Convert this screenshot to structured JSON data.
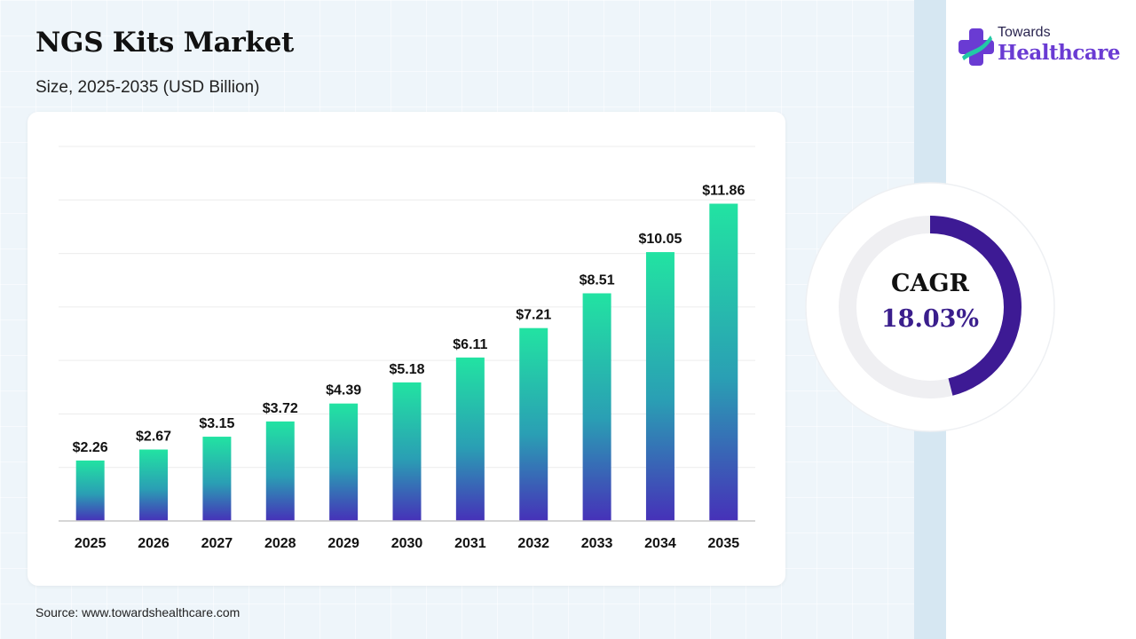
{
  "header": {
    "title": "NGS Kits Market",
    "subtitle": "Size, 2025-2035 (USD Billion)"
  },
  "brand": {
    "line1": "Towards",
    "line2": "Healthcare",
    "icon": "cross-plus-icon"
  },
  "source": "Source: www.towardshealthcare.com",
  "cagr": {
    "label": "CAGR",
    "value": "18.03%",
    "ring_fraction": 0.46,
    "colors": {
      "arc": "#3d1a94",
      "track": "#efeff2"
    }
  },
  "colors": {
    "bar_top": "#22e3a2",
    "bar_mid": "#2a9fb4",
    "bar_bottom": "#4631b8",
    "accent": "#3d1a94"
  },
  "chart_data": {
    "type": "bar",
    "title": "NGS Kits Market",
    "subtitle": "Size, 2025-2035 (USD Billion)",
    "categories": [
      "2025",
      "2026",
      "2027",
      "2028",
      "2029",
      "2030",
      "2031",
      "2032",
      "2033",
      "2034",
      "2035"
    ],
    "values": [
      2.26,
      2.67,
      3.15,
      3.72,
      4.39,
      5.18,
      6.11,
      7.21,
      8.51,
      10.05,
      11.86
    ],
    "value_labels": [
      "$2.26",
      "$2.67",
      "$3.15",
      "$3.72",
      "$4.39",
      "$5.18",
      "$6.11",
      "$7.21",
      "$8.51",
      "$10.05",
      "$11.86"
    ],
    "xlabel": "",
    "ylabel": "",
    "ylim": [
      0,
      14
    ],
    "grid": true,
    "legend": "none"
  }
}
